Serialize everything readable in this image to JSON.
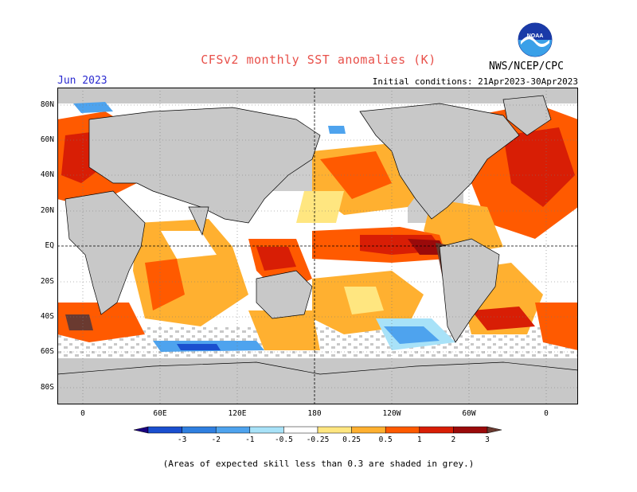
{
  "header": {
    "title": "CFSv2 monthly SST anomalies (K)",
    "agency": "NWS/NCEP/CPC",
    "month": "Jun 2023",
    "initial_conditions": "Initial conditions: 21Apr2023-30Apr2023",
    "logo_text": "NOAA"
  },
  "axes": {
    "lat_labels": [
      "80N",
      "60N",
      "40N",
      "20N",
      "EQ",
      "20S",
      "40S",
      "60S",
      "80S"
    ],
    "lon_labels": [
      "0",
      "60E",
      "120E",
      "180",
      "120W",
      "60W",
      "0"
    ]
  },
  "colorbar": {
    "labels": [
      "-3",
      "-2",
      "-1",
      "-0.5",
      "-0.25",
      "0.25",
      "0.5",
      "1",
      "2",
      "3"
    ],
    "colors": [
      "#1a0080",
      "#1a4fcf",
      "#2f7fe0",
      "#4ea3ee",
      "#a8e2f8",
      "#ffffff",
      "#ffe680",
      "#ffb030",
      "#ff5a00",
      "#d81e05",
      "#9a0a0a",
      "#6a3a30"
    ]
  },
  "footnote": "(Areas of expected skill less than 0.3 are shaded in grey.)",
  "colors": {
    "land": "#c8c8c8",
    "low_skill": "#c8c8c8",
    "title": "#e8504a",
    "month": "#2a2ad0"
  }
}
